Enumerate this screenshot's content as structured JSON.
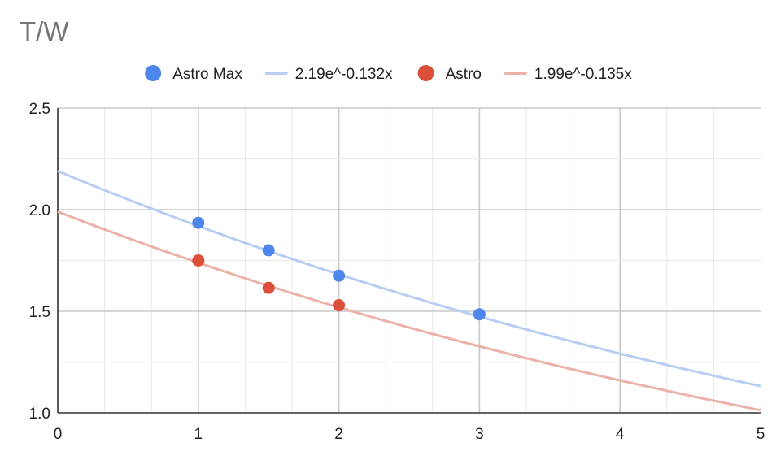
{
  "chart_data": {
    "type": "scatter",
    "title": "T/W",
    "xlabel": "",
    "ylabel": "",
    "xlim": [
      0,
      5
    ],
    "ylim": [
      1.0,
      2.5
    ],
    "x_ticks": [
      "0",
      "1",
      "2",
      "3",
      "4",
      "5"
    ],
    "y_ticks": [
      "1.0",
      "1.5",
      "2.0",
      "2.5"
    ],
    "grid": true,
    "legend_position": "top",
    "series": [
      {
        "name": "Astro Max",
        "kind": "points",
        "color": "#4f86ec",
        "x": [
          1,
          1.5,
          2,
          3
        ],
        "y": [
          1.935,
          1.8,
          1.675,
          1.485
        ]
      },
      {
        "name": "2.19e^-0.132x",
        "kind": "trendline",
        "color": "#b8cdf4",
        "a": 2.19,
        "b": -0.132,
        "x_range": [
          0,
          5
        ]
      },
      {
        "name": "Astro",
        "kind": "points",
        "color": "#db4f3b",
        "x": [
          1,
          1.5,
          2
        ],
        "y": [
          1.75,
          1.615,
          1.53
        ]
      },
      {
        "name": "1.99e^-0.135x",
        "kind": "trendline",
        "color": "#ecb1a8",
        "a": 1.99,
        "b": -0.135,
        "x_range": [
          0,
          5
        ]
      }
    ]
  }
}
